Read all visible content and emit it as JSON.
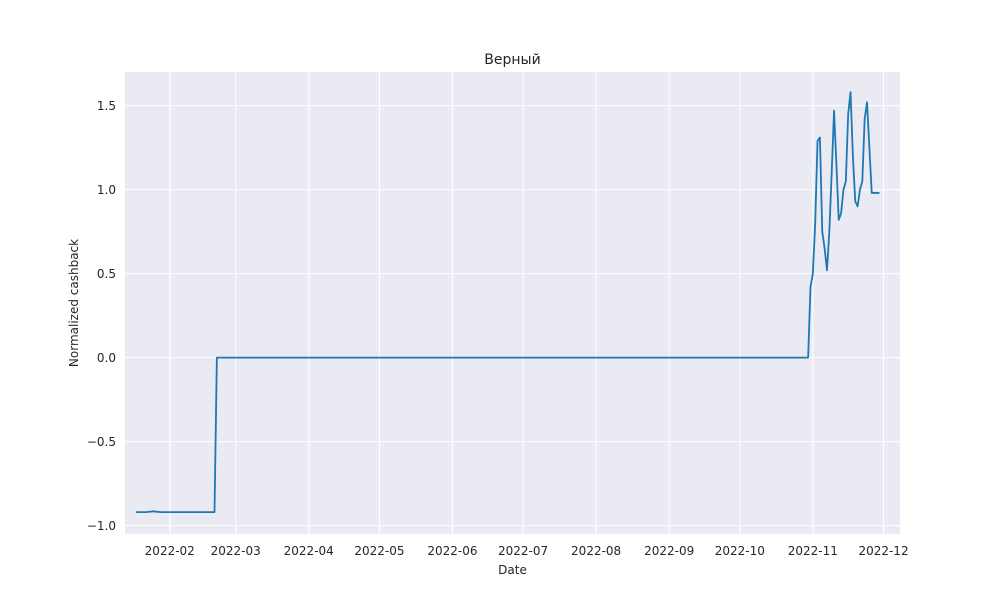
{
  "chart_data": {
    "type": "line",
    "title": "Верный",
    "xlabel": "Date",
    "ylabel": "Normalized cashback",
    "x_axis_type": "date",
    "xlim": [
      "2022-01-13",
      "2022-12-08"
    ],
    "ylim": [
      -1.05,
      1.7
    ],
    "x_ticks": [
      "2022-02",
      "2022-03",
      "2022-04",
      "2022-05",
      "2022-06",
      "2022-07",
      "2022-08",
      "2022-09",
      "2022-10",
      "2022-11",
      "2022-12"
    ],
    "y_ticks": [
      {
        "value": 1.5,
        "label": "1.5"
      },
      {
        "value": 1.0,
        "label": "1.0"
      },
      {
        "value": 0.5,
        "label": "0.5"
      },
      {
        "value": 0.0,
        "label": "0.0"
      },
      {
        "value": -0.5,
        "label": "−0.5"
      },
      {
        "value": -1.0,
        "label": "−1.0"
      }
    ],
    "grid": true,
    "background_color": "#eaeaf2",
    "grid_color": "#ffffff",
    "series": [
      {
        "color": "#1f77b4",
        "x": [
          "2022-01-18",
          "2022-01-20",
          "2022-01-22",
          "2022-01-25",
          "2022-01-28",
          "2022-01-31",
          "2022-02-03",
          "2022-02-06",
          "2022-02-09",
          "2022-02-12",
          "2022-02-15",
          "2022-02-18",
          "2022-02-20",
          "2022-02-21",
          "2022-03-01",
          "2022-04-01",
          "2022-05-01",
          "2022-06-01",
          "2022-07-01",
          "2022-08-01",
          "2022-09-01",
          "2022-10-01",
          "2022-10-30",
          "2022-10-31",
          "2022-11-01",
          "2022-11-02",
          "2022-11-03",
          "2022-11-04",
          "2022-11-05",
          "2022-11-06",
          "2022-11-07",
          "2022-11-08",
          "2022-11-09",
          "2022-11-10",
          "2022-11-11",
          "2022-11-12",
          "2022-11-13",
          "2022-11-14",
          "2022-11-15",
          "2022-11-16",
          "2022-11-17",
          "2022-11-18",
          "2022-11-19",
          "2022-11-20",
          "2022-11-21",
          "2022-11-22",
          "2022-11-23",
          "2022-11-24",
          "2022-11-25",
          "2022-11-26",
          "2022-11-27",
          "2022-11-28",
          "2022-11-29"
        ],
        "y": [
          -0.92,
          -0.92,
          -0.92,
          -0.915,
          -0.92,
          -0.92,
          -0.92,
          -0.92,
          -0.92,
          -0.92,
          -0.92,
          -0.92,
          -0.92,
          0.0,
          0.0,
          0.0,
          0.0,
          0.0,
          0.0,
          0.0,
          0.0,
          0.0,
          0.0,
          0.42,
          0.5,
          0.8,
          1.29,
          1.31,
          0.75,
          0.65,
          0.52,
          0.75,
          1.1,
          1.47,
          1.15,
          0.82,
          0.86,
          1.0,
          1.05,
          1.45,
          1.58,
          1.2,
          0.93,
          0.9,
          1.0,
          1.05,
          1.42,
          1.52,
          1.25,
          0.98,
          0.98,
          0.98,
          0.98
        ]
      }
    ]
  }
}
